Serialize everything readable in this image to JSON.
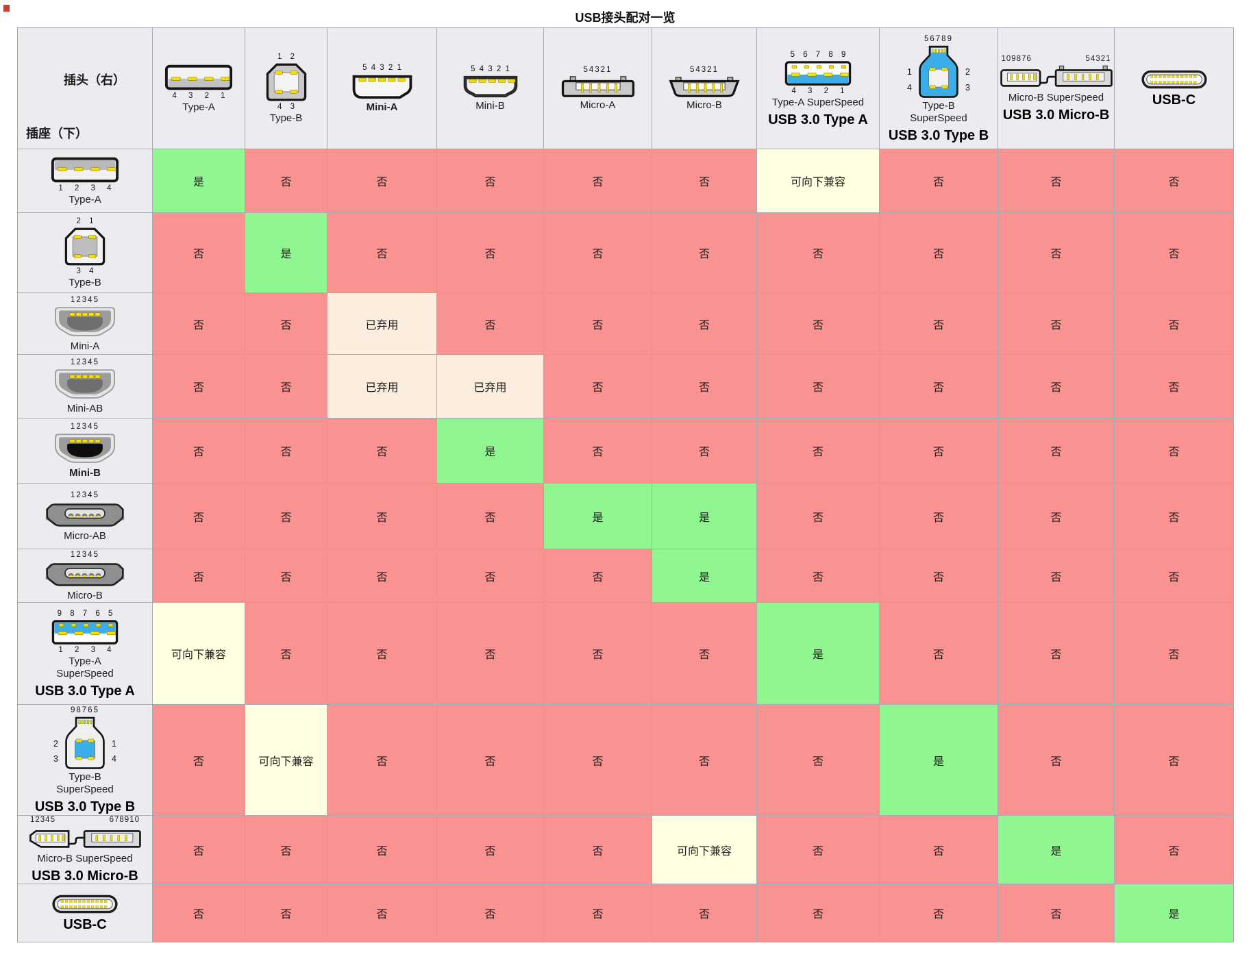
{
  "title": "USB接头配对一览",
  "corner": {
    "plug_axis_label": "插头（右）",
    "receptacle_axis_label": "插座（下）"
  },
  "cell_types": {
    "yes": "是",
    "no": "否",
    "backward_compatible": "可向下兼容",
    "deprecated": "已弃用"
  },
  "colors": {
    "yes": "#90F790",
    "no": "#FA9292",
    "backward_compatible": "#FFFFE1",
    "deprecated": "#FBEEDE",
    "header_bg": "#ECECF0",
    "grid_line": "#A6ACB3",
    "usb3_blue": "#3BAEE8",
    "pin_yellow": "#F2DF0A"
  },
  "columns": [
    {
      "id": "type-a-plug",
      "connector": "type-a",
      "label": "Type-A",
      "pins_bottom": "4 3 2 1"
    },
    {
      "id": "type-b-plug",
      "connector": "type-b",
      "label": "Type-B",
      "pins_top": "1 2",
      "pins_bottom": "4 3"
    },
    {
      "id": "mini-a-plug",
      "connector": "mini-a",
      "label": "Mini-A",
      "label_bold": true,
      "pins_top": "5 4 3 2 1"
    },
    {
      "id": "mini-b-plug",
      "connector": "mini-b",
      "label": "Mini-B",
      "pins_top": "5 4 3 2 1"
    },
    {
      "id": "micro-a-plug",
      "connector": "micro-a",
      "label": "Micro-A",
      "pins_top": "54321"
    },
    {
      "id": "micro-b-plug",
      "connector": "micro-b",
      "label": "Micro-B",
      "pins_top": "54321"
    },
    {
      "id": "usb3-type-a-plug",
      "connector": "usb3-a",
      "label": "Type-A SuperSpeed",
      "bold_label": "USB 3.0 Type A",
      "pins_top": "5 6 7 8 9",
      "pins_bottom": "4 3 2 1"
    },
    {
      "id": "usb3-type-b-plug",
      "connector": "usb3-b",
      "label": "Type-B SuperSpeed",
      "label_narrow": true,
      "bold_label": "USB 3.0 Type B",
      "pins_top": "56789",
      "pins_sides": {
        "tl": "1",
        "tr": "2",
        "bl": "4",
        "br": "3"
      }
    },
    {
      "id": "usb3-micro-b-plug",
      "connector": "usb3-micro-b",
      "label": "Micro-B SuperSpeed",
      "bold_label": "USB 3.0 Micro-B",
      "pins_top_left": "109876",
      "pins_top_right": "54321"
    },
    {
      "id": "usb-c-plug",
      "connector": "usb-c",
      "bold_label": "USB-C"
    }
  ],
  "rows": [
    {
      "id": "type-a-receptacle",
      "connector": "type-a",
      "label": "Type-A",
      "pins_bottom": "1 2 3 4",
      "cells": [
        "yes",
        "no",
        "no",
        "no",
        "no",
        "no",
        "backward_compatible",
        "no",
        "no",
        "no"
      ]
    },
    {
      "id": "type-b-receptacle",
      "connector": "type-b",
      "label": "Type-B",
      "pins_top": "2 1",
      "pins_bottom": "3 4",
      "cells": [
        "no",
        "yes",
        "no",
        "no",
        "no",
        "no",
        "no",
        "no",
        "no",
        "no"
      ]
    },
    {
      "id": "mini-a-receptacle",
      "connector": "mini-a",
      "label": "Mini-A",
      "pins_top": "12345",
      "cells": [
        "no",
        "no",
        "deprecated",
        "no",
        "no",
        "no",
        "no",
        "no",
        "no",
        "no"
      ]
    },
    {
      "id": "mini-ab-receptacle",
      "connector": "mini-ab",
      "label": "Mini-AB",
      "pins_top": "12345",
      "cells": [
        "no",
        "no",
        "deprecated",
        "deprecated",
        "no",
        "no",
        "no",
        "no",
        "no",
        "no"
      ]
    },
    {
      "id": "mini-b-receptacle",
      "connector": "mini-b",
      "label": "Mini-B",
      "label_bold": true,
      "pins_top": "12345",
      "cells": [
        "no",
        "no",
        "no",
        "yes",
        "no",
        "no",
        "no",
        "no",
        "no",
        "no"
      ]
    },
    {
      "id": "micro-ab-receptacle",
      "connector": "micro-ab",
      "label": "Micro-AB",
      "pins_top": "12345",
      "cells": [
        "no",
        "no",
        "no",
        "no",
        "yes",
        "yes",
        "no",
        "no",
        "no",
        "no"
      ]
    },
    {
      "id": "micro-b-receptacle",
      "connector": "micro-b",
      "label": "Micro-B",
      "pins_top": "12345",
      "cells": [
        "no",
        "no",
        "no",
        "no",
        "no",
        "yes",
        "no",
        "no",
        "no",
        "no"
      ]
    },
    {
      "id": "usb3-type-a-receptacle",
      "connector": "usb3-a",
      "label": "Type-A SuperSpeed",
      "label_narrow": true,
      "bold_label": "USB 3.0 Type A",
      "pins_top": "9 8 7 6 5",
      "pins_bottom": "1 2 3 4",
      "cells": [
        "backward_compatible",
        "no",
        "no",
        "no",
        "no",
        "no",
        "yes",
        "no",
        "no",
        "no"
      ]
    },
    {
      "id": "usb3-type-b-receptacle",
      "connector": "usb3-b",
      "label": "Type-B SuperSpeed",
      "label_narrow": true,
      "bold_label": "USB 3.0 Type B",
      "pins_top": "98765",
      "pins_sides": {
        "tl": "2",
        "tr": "1",
        "bl": "3",
        "br": "4"
      },
      "cells": [
        "no",
        "backward_compatible",
        "no",
        "no",
        "no",
        "no",
        "no",
        "yes",
        "no",
        "no"
      ]
    },
    {
      "id": "usb3-micro-b-receptacle",
      "connector": "usb3-micro-b",
      "label": "Micro-B SuperSpeed",
      "bold_label": "USB 3.0 Micro-B",
      "pins_top_left": "12345",
      "pins_top_right": "678910",
      "cells": [
        "no",
        "no",
        "no",
        "no",
        "no",
        "backward_compatible",
        "no",
        "no",
        "yes",
        "no"
      ]
    },
    {
      "id": "usb-c-receptacle",
      "connector": "usb-c",
      "bold_label": "USB-C",
      "cells": [
        "no",
        "no",
        "no",
        "no",
        "no",
        "no",
        "no",
        "no",
        "no",
        "yes"
      ]
    }
  ],
  "chart_data": {
    "type": "table",
    "title": "USB接头配对一览",
    "columns": [
      "Type-A",
      "Type-B",
      "Mini-A",
      "Mini-B",
      "Micro-A",
      "Micro-B",
      "USB 3.0 Type A",
      "USB 3.0 Type B",
      "USB 3.0 Micro-B",
      "USB-C"
    ],
    "rows": [
      "Type-A",
      "Type-B",
      "Mini-A",
      "Mini-AB",
      "Mini-B",
      "Micro-AB",
      "Micro-B",
      "USB 3.0 Type A",
      "USB 3.0 Type B",
      "USB 3.0 Micro-B",
      "USB-C"
    ],
    "values": [
      [
        "是",
        "否",
        "否",
        "否",
        "否",
        "否",
        "可向下兼容",
        "否",
        "否",
        "否"
      ],
      [
        "否",
        "是",
        "否",
        "否",
        "否",
        "否",
        "否",
        "否",
        "否",
        "否"
      ],
      [
        "否",
        "否",
        "已弃用",
        "否",
        "否",
        "否",
        "否",
        "否",
        "否",
        "否"
      ],
      [
        "否",
        "否",
        "已弃用",
        "已弃用",
        "否",
        "否",
        "否",
        "否",
        "否",
        "否"
      ],
      [
        "否",
        "否",
        "否",
        "是",
        "否",
        "否",
        "否",
        "否",
        "否",
        "否"
      ],
      [
        "否",
        "否",
        "否",
        "否",
        "是",
        "是",
        "否",
        "否",
        "否",
        "否"
      ],
      [
        "否",
        "否",
        "否",
        "否",
        "否",
        "是",
        "否",
        "否",
        "否",
        "否"
      ],
      [
        "可向下兼容",
        "否",
        "否",
        "否",
        "否",
        "否",
        "是",
        "否",
        "否",
        "否"
      ],
      [
        "否",
        "可向下兼容",
        "否",
        "否",
        "否",
        "否",
        "否",
        "是",
        "否",
        "否"
      ],
      [
        "否",
        "否",
        "否",
        "否",
        "否",
        "可向下兼容",
        "否",
        "否",
        "是",
        "否"
      ],
      [
        "否",
        "否",
        "否",
        "否",
        "否",
        "否",
        "否",
        "否",
        "否",
        "是"
      ]
    ]
  }
}
